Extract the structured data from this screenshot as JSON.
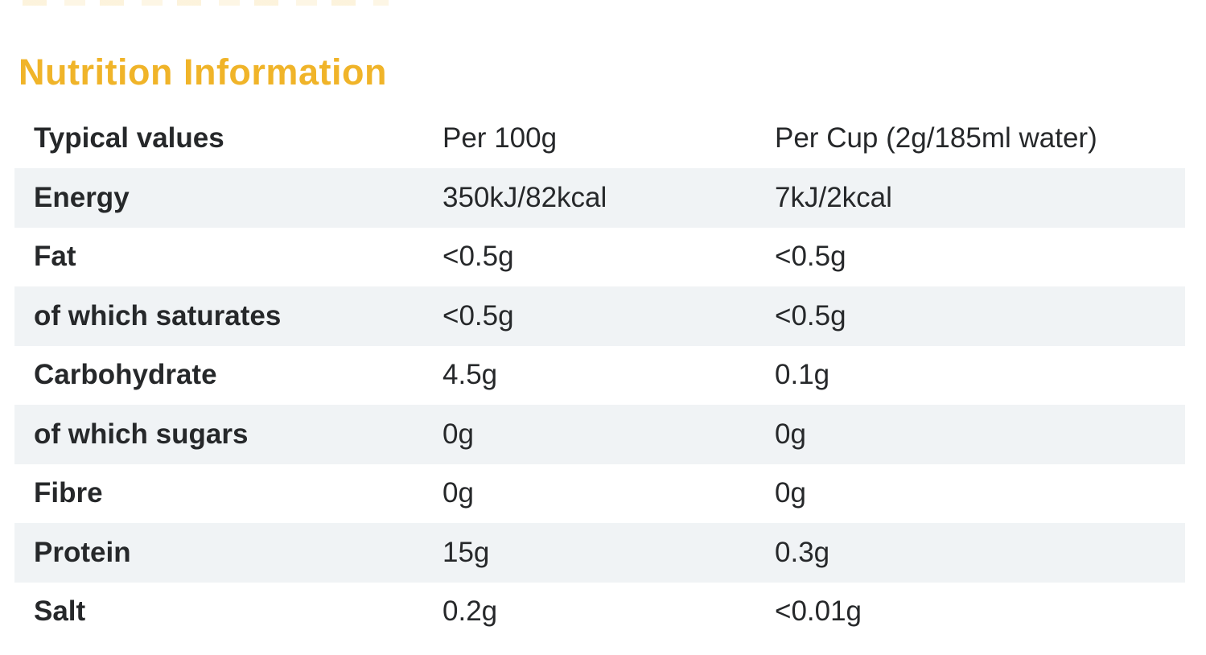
{
  "heading": {
    "text": "Nutrition Information",
    "color": "#f0b429"
  },
  "table": {
    "columns": {
      "label": "Typical values",
      "per_100g": "Per 100g",
      "per_cup": "Per Cup (2g/185ml water)"
    },
    "rows": [
      {
        "label": "Energy",
        "per_100g": "350kJ/82kcal",
        "per_cup": "7kJ/2kcal"
      },
      {
        "label": "Fat",
        "per_100g": "<0.5g",
        "per_cup": "<0.5g"
      },
      {
        "label": "of which saturates",
        "per_100g": "<0.5g",
        "per_cup": "<0.5g"
      },
      {
        "label": "Carbohydrate",
        "per_100g": "4.5g",
        "per_cup": "0.1g"
      },
      {
        "label": "of which sugars",
        "per_100g": "0g",
        "per_cup": "0g"
      },
      {
        "label": "Fibre",
        "per_100g": "0g",
        "per_cup": "0g"
      },
      {
        "label": "Protein",
        "per_100g": "15g",
        "per_cup": "0.3g"
      },
      {
        "label": "Salt",
        "per_100g": "0.2g",
        "per_cup": "<0.01g"
      }
    ],
    "stripe_color": "#f0f3f5",
    "text_color": "#26282a"
  }
}
